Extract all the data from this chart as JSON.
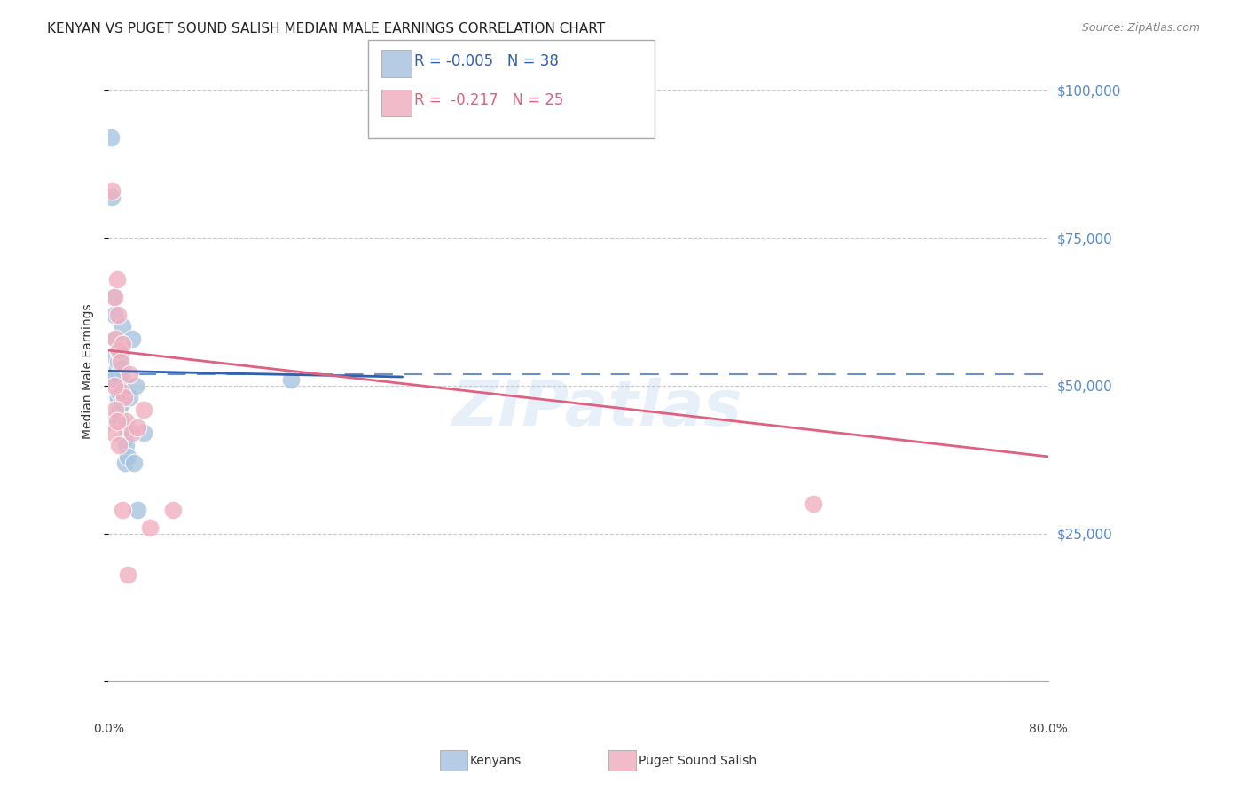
{
  "title": "KENYAN VS PUGET SOUND SALISH MEDIAN MALE EARNINGS CORRELATION CHART",
  "source": "Source: ZipAtlas.com",
  "ylabel": "Median Male Earnings",
  "xlim": [
    0.0,
    0.8
  ],
  "ylim": [
    0,
    105000
  ],
  "yticks": [
    0,
    25000,
    50000,
    75000,
    100000
  ],
  "xticks": [
    0.0,
    0.1,
    0.2,
    0.3,
    0.4,
    0.5,
    0.6,
    0.7,
    0.8
  ],
  "background_color": "#ffffff",
  "grid_color": "#c8c8d0",
  "blue_color": "#a8c4e0",
  "pink_color": "#f0b0c0",
  "line_blue": "#3060b0",
  "line_pink": "#e06080",
  "label_color": "#5588cc",
  "kenyan_x": [
    0.002,
    0.003,
    0.004,
    0.005,
    0.005,
    0.006,
    0.006,
    0.007,
    0.007,
    0.007,
    0.008,
    0.008,
    0.008,
    0.008,
    0.009,
    0.009,
    0.009,
    0.01,
    0.01,
    0.01,
    0.011,
    0.011,
    0.012,
    0.012,
    0.013,
    0.014,
    0.015,
    0.015,
    0.016,
    0.018,
    0.02,
    0.022,
    0.023,
    0.025,
    0.03,
    0.155,
    0.003,
    0.004
  ],
  "kenyan_y": [
    92000,
    82000,
    65000,
    55000,
    62000,
    52000,
    58000,
    50000,
    53000,
    48000,
    51000,
    54000,
    56000,
    48000,
    52000,
    49000,
    46000,
    55000,
    50000,
    44000,
    53000,
    47000,
    60000,
    51000,
    41000,
    37000,
    40000,
    43000,
    38000,
    48000,
    58000,
    37000,
    50000,
    29000,
    42000,
    51000,
    44000,
    51000
  ],
  "salish_x": [
    0.003,
    0.005,
    0.006,
    0.007,
    0.008,
    0.009,
    0.01,
    0.011,
    0.012,
    0.013,
    0.015,
    0.018,
    0.02,
    0.025,
    0.03,
    0.035,
    0.055,
    0.6,
    0.004,
    0.005,
    0.006,
    0.007,
    0.009,
    0.012,
    0.016
  ],
  "salish_y": [
    83000,
    65000,
    58000,
    68000,
    62000,
    56000,
    54000,
    49000,
    57000,
    48000,
    44000,
    52000,
    42000,
    43000,
    46000,
    26000,
    29000,
    30000,
    42000,
    50000,
    46000,
    44000,
    40000,
    29000,
    18000
  ],
  "kenyan_R": "-0.005",
  "kenyan_N": "38",
  "salish_R": "-0.217",
  "salish_N": "25",
  "legend_label_kenyan": "Kenyans",
  "legend_label_salish": "Puget Sound Salish",
  "blue_line_x": [
    0.0,
    0.25
  ],
  "blue_line_y": [
    52500,
    51500
  ],
  "pink_line_x": [
    0.0,
    0.8
  ],
  "pink_line_y": [
    56000,
    38000
  ],
  "dashed_line_y": 52000,
  "watermark": "ZIPatlas",
  "title_fontsize": 11,
  "axis_label_fontsize": 10,
  "tick_label_fontsize": 10,
  "legend_fontsize": 12,
  "source_fontsize": 9
}
